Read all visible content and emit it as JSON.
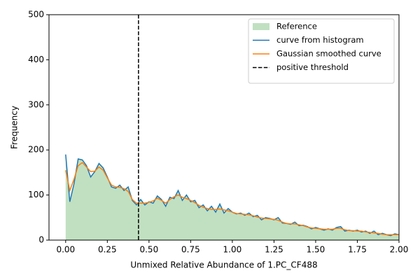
{
  "chart_data": {
    "type": "line",
    "xlabel": "Unmixed Relative Abundance of 1.PC_CF488",
    "ylabel": "Frequency",
    "xlim": [
      -0.1,
      2.0
    ],
    "ylim": [
      0,
      500
    ],
    "xticks": [
      {
        "value": 0,
        "label": "0.00"
      },
      {
        "value": 0.25,
        "label": "0.25"
      },
      {
        "value": 0.5,
        "label": "0.50"
      },
      {
        "value": 0.75,
        "label": "0.75"
      },
      {
        "value": 1,
        "label": "1.00"
      },
      {
        "value": 1.25,
        "label": "1.25"
      },
      {
        "value": 1.5,
        "label": "1.50"
      },
      {
        "value": 1.75,
        "label": "1.75"
      },
      {
        "value": 2,
        "label": "2.00"
      }
    ],
    "yticks": [
      0,
      100,
      200,
      300,
      400,
      500
    ],
    "legend": "upper right",
    "x": [
      0,
      0.025,
      0.05,
      0.075,
      0.1,
      0.125,
      0.15,
      0.175,
      0.2,
      0.225,
      0.25,
      0.275,
      0.3,
      0.325,
      0.35,
      0.375,
      0.4,
      0.425,
      0.45,
      0.475,
      0.5,
      0.525,
      0.55,
      0.575,
      0.6,
      0.625,
      0.65,
      0.675,
      0.7,
      0.725,
      0.75,
      0.775,
      0.8,
      0.825,
      0.85,
      0.875,
      0.9,
      0.925,
      0.95,
      0.975,
      1.0,
      1.025,
      1.05,
      1.075,
      1.1,
      1.125,
      1.15,
      1.175,
      1.2,
      1.225,
      1.25,
      1.275,
      1.3,
      1.325,
      1.35,
      1.375,
      1.4,
      1.425,
      1.45,
      1.475,
      1.5,
      1.525,
      1.55,
      1.575,
      1.6,
      1.625,
      1.65,
      1.675,
      1.7,
      1.725,
      1.75,
      1.775,
      1.8,
      1.825,
      1.85,
      1.875,
      1.9,
      1.925,
      1.95,
      1.975,
      2.0
    ],
    "series": [
      {
        "name": "Reference",
        "style": "area",
        "color": "#c1e0c1",
        "values": [
          190,
          85,
          125,
          180,
          178,
          165,
          140,
          152,
          170,
          160,
          140,
          118,
          115,
          122,
          110,
          118,
          88,
          78,
          90,
          78,
          85,
          82,
          98,
          90,
          75,
          95,
          92,
          110,
          88,
          100,
          85,
          88,
          72,
          78,
          65,
          75,
          62,
          80,
          60,
          70,
          62,
          58,
          60,
          55,
          60,
          52,
          55,
          45,
          50,
          48,
          45,
          50,
          38,
          37,
          35,
          40,
          32,
          33,
          30,
          25,
          28,
          25,
          22,
          25,
          22,
          28,
          30,
          20,
          22,
          20,
          22,
          18,
          20,
          15,
          20,
          12,
          15,
          12,
          10,
          14,
          12
        ]
      },
      {
        "name": "curve from histogram",
        "style": "line",
        "color": "#1f77b4",
        "values": [
          190,
          85,
          125,
          180,
          178,
          165,
          140,
          152,
          170,
          160,
          140,
          118,
          115,
          122,
          110,
          118,
          88,
          78,
          90,
          78,
          85,
          82,
          98,
          90,
          75,
          95,
          92,
          110,
          88,
          100,
          85,
          88,
          72,
          78,
          65,
          75,
          62,
          80,
          60,
          70,
          62,
          58,
          60,
          55,
          60,
          52,
          55,
          45,
          50,
          48,
          45,
          50,
          38,
          37,
          35,
          40,
          32,
          33,
          30,
          25,
          28,
          25,
          22,
          25,
          22,
          28,
          30,
          20,
          22,
          20,
          22,
          18,
          20,
          15,
          20,
          12,
          15,
          12,
          10,
          14,
          12
        ]
      },
      {
        "name": "Gaussian smoothed curve",
        "style": "line",
        "color": "#ff7f0e",
        "values": [
          155,
          110,
          135,
          165,
          172,
          162,
          152,
          153,
          162,
          155,
          138,
          122,
          118,
          117,
          114,
          108,
          90,
          82,
          82,
          82,
          84,
          87,
          93,
          88,
          82,
          90,
          96,
          100,
          95,
          92,
          88,
          83,
          77,
          73,
          70,
          68,
          68,
          69,
          67,
          65,
          62,
          59,
          58,
          57,
          56,
          54,
          51,
          49,
          48,
          47,
          46,
          44,
          40,
          37,
          36,
          36,
          34,
          32,
          29,
          27,
          26,
          25,
          24,
          24,
          24,
          26,
          26,
          23,
          21,
          21,
          20,
          20,
          18,
          17,
          16,
          15,
          13,
          12,
          12,
          12,
          12
        ]
      }
    ],
    "vlines": [
      {
        "name": "positive threshold",
        "x": 0.437,
        "color": "#000000",
        "dashed": true
      }
    ]
  }
}
